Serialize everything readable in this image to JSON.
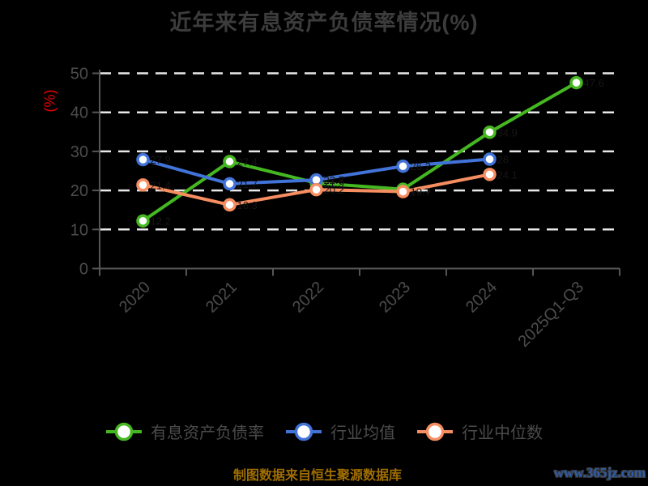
{
  "page": {
    "background": "#000000",
    "source_note": "制图数据来自恒生聚源数据库",
    "source_note_color": "#a06e00",
    "watermark": "www.365jz.com",
    "watermark_color": "#2f5ba6"
  },
  "chart_data": {
    "type": "line",
    "title": "近年来有息资产负债率情况(%)",
    "title_color": "#3c3c3c",
    "ylabel": "(%)",
    "ylabel_color": "#e60000",
    "categories": [
      "2020",
      "2021",
      "2022",
      "2023",
      "2024",
      "2025Q1-Q3"
    ],
    "series": [
      {
        "name": "有息资产负债率",
        "color": "#45b821",
        "values": [
          12.2,
          27.4,
          21.9,
          20.3,
          34.9,
          47.6
        ]
      },
      {
        "name": "行业均值",
        "color": "#4273d9",
        "values": [
          27.9,
          21.7,
          22.7,
          26.2,
          28.0,
          null
        ]
      },
      {
        "name": "行业中位数",
        "color": "#f78e61",
        "values": [
          21.4,
          16.3,
          20.2,
          19.7,
          24.1,
          null
        ]
      }
    ],
    "ylim": [
      0,
      50
    ],
    "ytick_step": 10,
    "yticks": [
      "0",
      "10",
      "20",
      "30",
      "40",
      "50"
    ],
    "grid": true,
    "grid_style": "dashed",
    "grid_color": "#e8e8e8",
    "axis_color": "#565656",
    "tick_label_color": "#4c4c4c",
    "point_label_color": "#161616",
    "legend_position": "bottom",
    "legend_text_color": "#4b4b4b"
  }
}
